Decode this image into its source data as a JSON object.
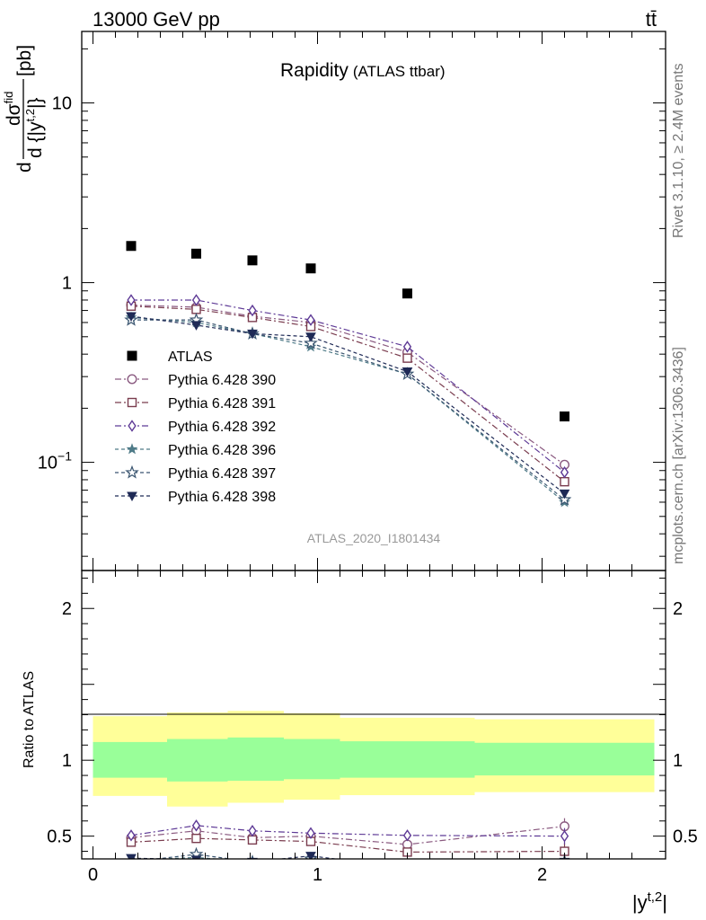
{
  "header": {
    "beam_label": "13000 GeV pp",
    "process_label": "tt̄",
    "side_rivet": "Rivet 3.1.10, ≥ 2.4M events",
    "side_site": "mcplots.cern.ch [arXiv:1306.3436]"
  },
  "chart_data": {
    "type": "scatter",
    "title": "Rapidity",
    "subtitle": "(ATLAS ttbar)",
    "analysis_label": "ATLAS_2020_I1801434",
    "xlabel": "|y",
    "xlabel_sup": "t,2",
    "xlabel_end": "|",
    "ylabel": {
      "d": "d",
      "dsig": "dσ",
      "dsig_sup": "fid",
      "den": "d {|y",
      "den_sup": "t,2",
      "den_end": "|}",
      "unit": "[pb]"
    },
    "ratio_ylabel": "Ratio to ATLAS",
    "xlim": [
      -0.05,
      2.55
    ],
    "ylim": [
      0.025,
      25
    ],
    "ylog": true,
    "ratio_ylim": [
      0.35,
      2.25
    ],
    "main_yticks": [
      {
        "v": 0.1,
        "base": "10",
        "exp": "−1"
      },
      {
        "v": 1,
        "base": "1",
        "exp": ""
      },
      {
        "v": 10,
        "base": "10",
        "exp": ""
      }
    ],
    "ratio_yticks": [
      {
        "v": 0.5,
        "label": "0.5"
      },
      {
        "v": 1,
        "label": "1"
      },
      {
        "v": 2,
        "label": "2"
      }
    ],
    "xticks": [
      {
        "v": 0,
        "label": "0"
      },
      {
        "v": 1,
        "label": "1"
      },
      {
        "v": 2,
        "label": "2"
      }
    ],
    "bin_edges": [
      0,
      0.33,
      0.6,
      0.85,
      1.1,
      1.7,
      2.5
    ],
    "bin_centers": [
      0.17,
      0.46,
      0.71,
      0.97,
      1.4,
      2.1
    ],
    "data": {
      "name": "ATLAS",
      "values": [
        1.6,
        1.45,
        1.33,
        1.2,
        0.87,
        0.18
      ]
    },
    "bands": {
      "inner_color": "#99ff99",
      "outer_color": "#ffff99",
      "inner_low": [
        0.885,
        0.86,
        0.865,
        0.875,
        0.885,
        0.9
      ],
      "inner_high": [
        1.12,
        1.14,
        1.15,
        1.14,
        1.125,
        1.115
      ],
      "outer_low": [
        0.765,
        0.695,
        0.72,
        0.74,
        0.77,
        0.79
      ],
      "outer_high": [
        1.29,
        1.315,
        1.325,
        1.31,
        1.28,
        1.27
      ]
    },
    "series": [
      {
        "name": "Pythia 6.428 390",
        "color": "#8a5a80",
        "marker": "circle",
        "dash": "7,3,2,3",
        "values": [
          0.75,
          0.73,
          0.65,
          0.6,
          0.41,
          0.097
        ],
        "ratio": [
          0.49,
          0.535,
          0.49,
          0.5,
          0.445,
          0.565
        ]
      },
      {
        "name": "Pythia 6.428 391",
        "color": "#7a3c4e",
        "marker": "square",
        "dash": "7,3,2,3",
        "values": [
          0.74,
          0.71,
          0.64,
          0.57,
          0.38,
          0.078
        ],
        "ratio": [
          0.46,
          0.485,
          0.475,
          0.465,
          0.395,
          0.4
        ]
      },
      {
        "name": "Pythia 6.428 392",
        "color": "#5e3a96",
        "marker": "diamond",
        "dash": "7,3,2,3",
        "values": [
          0.8,
          0.8,
          0.7,
          0.62,
          0.44,
          0.088
        ],
        "ratio": [
          0.505,
          0.57,
          0.535,
          0.52,
          0.505,
          0.5
        ]
      },
      {
        "name": "Pythia 6.428 396",
        "color": "#4f7b88",
        "marker": "star",
        "dash": "4,3",
        "values": [
          0.64,
          0.6,
          0.52,
          0.44,
          0.31,
          0.06
        ],
        "ratio": [
          0.34,
          0.36,
          0.33,
          0.345,
          0.29,
          0.33
        ]
      },
      {
        "name": "Pythia 6.428 397",
        "color": "#3a5570",
        "marker": "star-open",
        "dash": "4,3",
        "values": [
          0.62,
          0.62,
          0.52,
          0.46,
          0.31,
          0.062
        ],
        "ratio": [
          0.33,
          0.38,
          0.33,
          0.35,
          0.29,
          0.33
        ]
      },
      {
        "name": "Pythia 6.428 398",
        "color": "#1f2a56",
        "marker": "triangle-down",
        "dash": "4,3",
        "values": [
          0.65,
          0.58,
          0.52,
          0.5,
          0.32,
          0.067
        ],
        "ratio": [
          0.355,
          0.345,
          0.33,
          0.37,
          0.29,
          0.33
        ]
      }
    ],
    "legend_placement": "center-left"
  }
}
